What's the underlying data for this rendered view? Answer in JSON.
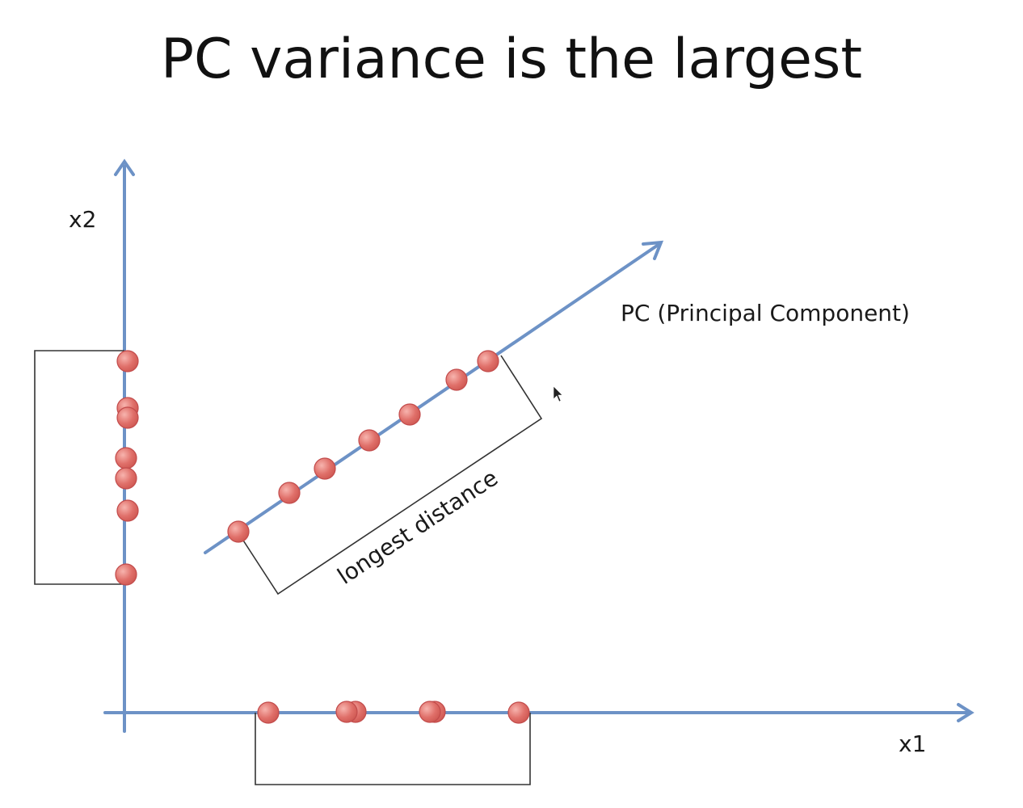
{
  "title": "PC variance is the largest",
  "labels": {
    "x2": "x2",
    "x1": "x1",
    "pc": "PC (Principal Component)",
    "longest": "longest distance"
  },
  "colors": {
    "axis": "#6d92c6",
    "point_fill": "#e0706a",
    "point_stroke": "#c24b4b",
    "bracket": "#333333",
    "text": "#111111"
  },
  "icons": {
    "cursor": "mouse-pointer-icon"
  }
}
